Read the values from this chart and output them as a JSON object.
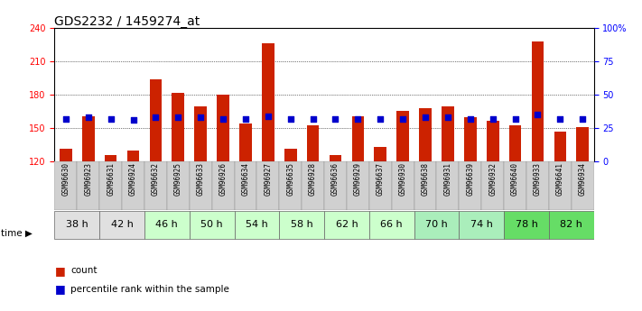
{
  "title": "GDS2232 / 1459274_at",
  "samples": [
    "GSM96630",
    "GSM96923",
    "GSM96631",
    "GSM96924",
    "GSM96632",
    "GSM96925",
    "GSM96633",
    "GSM96926",
    "GSM96634",
    "GSM96927",
    "GSM96635",
    "GSM96928",
    "GSM96636",
    "GSM96929",
    "GSM96637",
    "GSM96930",
    "GSM96638",
    "GSM96931",
    "GSM96639",
    "GSM96932",
    "GSM96640",
    "GSM96933",
    "GSM96641",
    "GSM96934"
  ],
  "time_groups": [
    {
      "label": "38 h",
      "cols": [
        "GSM96630",
        "GSM96923"
      ],
      "color": "#e0e0e0"
    },
    {
      "label": "42 h",
      "cols": [
        "GSM96631",
        "GSM96924"
      ],
      "color": "#e0e0e0"
    },
    {
      "label": "46 h",
      "cols": [
        "GSM96632",
        "GSM96925"
      ],
      "color": "#ccffcc"
    },
    {
      "label": "50 h",
      "cols": [
        "GSM96633",
        "GSM96926"
      ],
      "color": "#ccffcc"
    },
    {
      "label": "54 h",
      "cols": [
        "GSM96634",
        "GSM96927"
      ],
      "color": "#ccffcc"
    },
    {
      "label": "58 h",
      "cols": [
        "GSM96635",
        "GSM96928"
      ],
      "color": "#ccffcc"
    },
    {
      "label": "62 h",
      "cols": [
        "GSM96636",
        "GSM96929"
      ],
      "color": "#ccffcc"
    },
    {
      "label": "66 h",
      "cols": [
        "GSM96637",
        "GSM96930"
      ],
      "color": "#ccffcc"
    },
    {
      "label": "70 h",
      "cols": [
        "GSM96638",
        "GSM96931"
      ],
      "color": "#aaeebb"
    },
    {
      "label": "74 h",
      "cols": [
        "GSM96639",
        "GSM96932"
      ],
      "color": "#aaeebb"
    },
    {
      "label": "78 h",
      "cols": [
        "GSM96640",
        "GSM96933"
      ],
      "color": "#66dd66"
    },
    {
      "label": "82 h",
      "cols": [
        "GSM96641",
        "GSM96934"
      ],
      "color": "#66dd66"
    }
  ],
  "count_values": [
    132,
    161,
    126,
    130,
    194,
    182,
    170,
    180,
    154,
    226,
    132,
    153,
    126,
    161,
    133,
    166,
    168,
    170,
    160,
    157,
    153,
    228,
    147,
    151
  ],
  "percentile_values": [
    32,
    33,
    32,
    31,
    33,
    33,
    33,
    32,
    32,
    34,
    32,
    32,
    32,
    32,
    32,
    32,
    33,
    33,
    32,
    32,
    32,
    35,
    32,
    32
  ],
  "ylim_left": [
    120,
    240
  ],
  "ylim_right": [
    0,
    100
  ],
  "yticks_left": [
    120,
    150,
    180,
    210,
    240
  ],
  "yticks_right": [
    0,
    25,
    50,
    75,
    100
  ],
  "bar_color": "#cc2200",
  "dot_color": "#0000cc",
  "bg_color": "#ffffff",
  "sample_bg": "#d0d0d0",
  "title_fontsize": 10,
  "tick_fontsize": 7,
  "sample_fontsize": 5.5,
  "time_fontsize": 8
}
